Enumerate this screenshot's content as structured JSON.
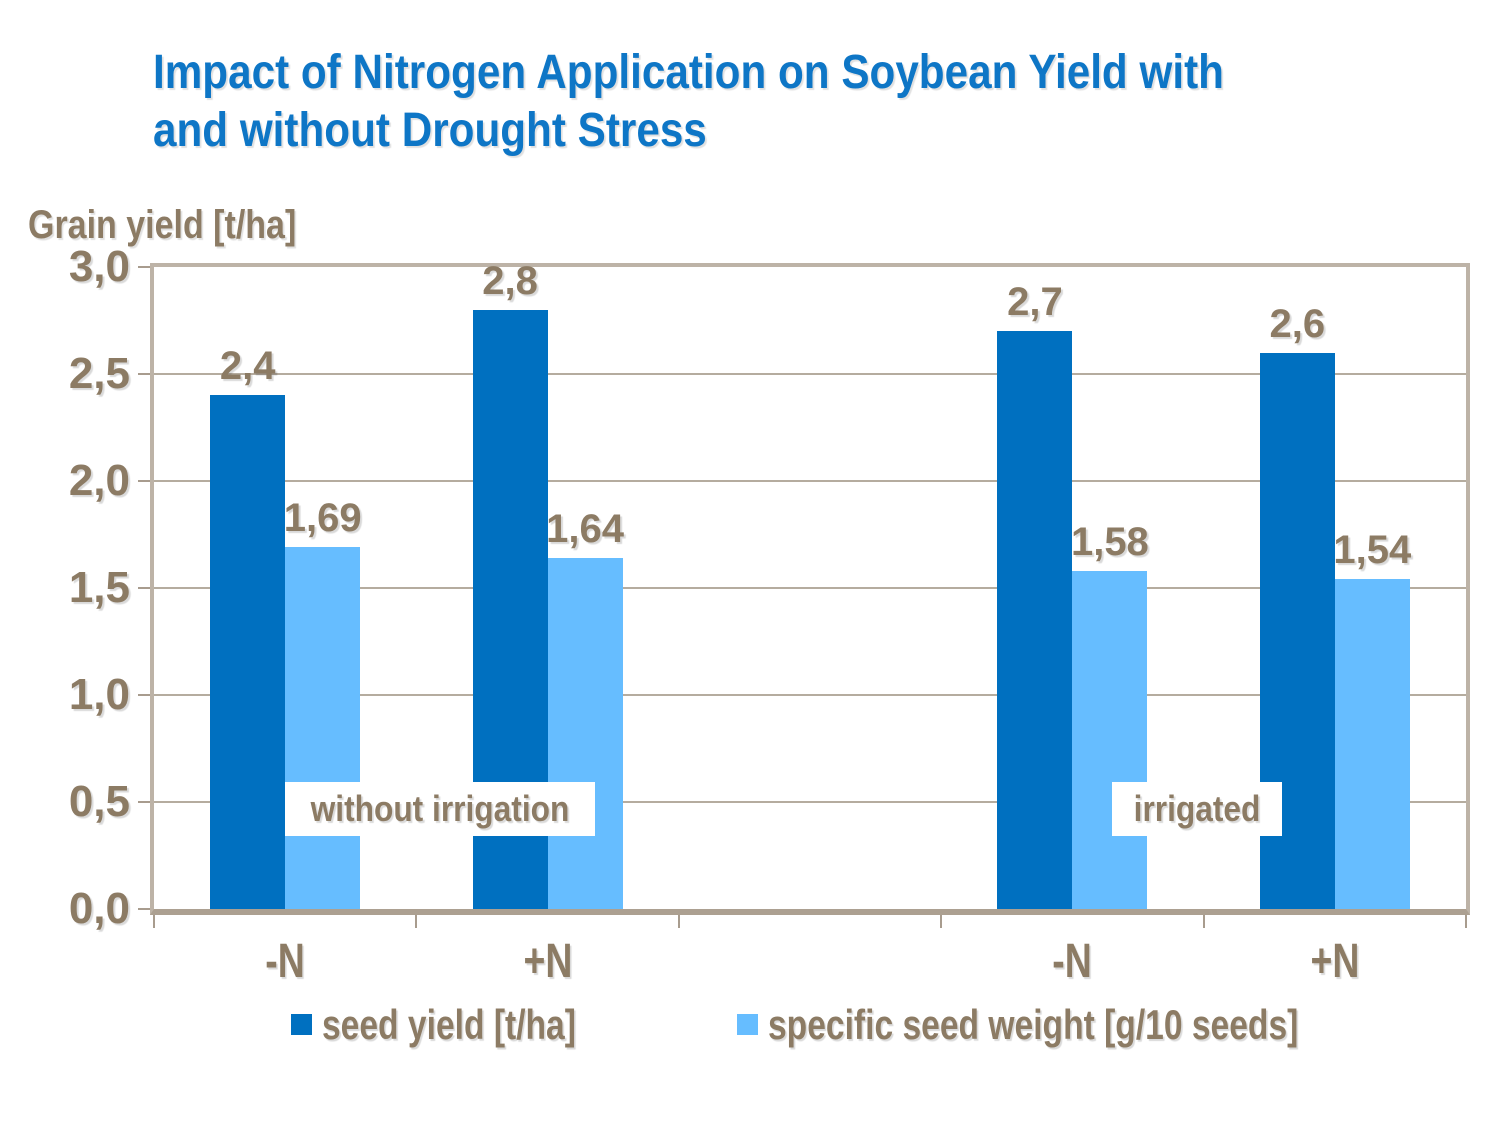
{
  "title": {
    "lines": [
      "Impact of Nitrogen Application on Soybean Yield with",
      "and without Drought Stress"
    ]
  },
  "y_axis_label": "Grain yield [t/ha]",
  "annotations": {
    "without_irrigation": "without irrigation",
    "irrigated": "irrigated"
  },
  "legend": {
    "seed_yield": "seed yield [t/ha]",
    "seed_weight": "specific seed weight [g/10 seeds]"
  },
  "colors": {
    "title_blue": "#0e76c6",
    "label_brown": "#8c7b64",
    "seed_yield_bar": "#0070c0",
    "seed_weight_bar": "#66bdff",
    "plot_frame": "#bdb3a7",
    "gridline": "#b5ac9f",
    "axis_tick": "#a89c8e"
  },
  "chart_data": {
    "type": "bar",
    "title": "Impact of Nitrogen Application on Soybean Yield with and without Drought Stress",
    "xlabel": "",
    "ylabel": "Grain yield [t/ha]",
    "ylim": [
      0,
      3.0
    ],
    "ytick_step": 0.5,
    "ytick_labels": [
      "3,0",
      "2,5",
      "2,0",
      "1,5",
      "1,0",
      "0,5",
      "0,0"
    ],
    "decimal_separator": ",",
    "grid": "horizontal",
    "legend_position": "bottom",
    "categories": [
      "-N",
      "+N",
      "",
      "-N",
      "+N"
    ],
    "group_annotations": [
      {
        "label": "without irrigation",
        "applies_to_categories": [
          0,
          1
        ]
      },
      {
        "label": "irrigated",
        "applies_to_categories": [
          3,
          4
        ]
      }
    ],
    "series": [
      {
        "name": "seed yield [t/ha]",
        "color": "#0070c0",
        "values": [
          2.4,
          2.8,
          null,
          2.7,
          2.6
        ],
        "value_labels": [
          "2,4",
          "2,8",
          null,
          "2,7",
          "2,6"
        ]
      },
      {
        "name": "specific seed weight [g/10 seeds]",
        "color": "#66bdff",
        "values": [
          1.69,
          1.64,
          null,
          1.58,
          1.54
        ],
        "value_labels": [
          "1,69",
          "1,64",
          null,
          "1,58",
          "1,54"
        ]
      }
    ]
  }
}
